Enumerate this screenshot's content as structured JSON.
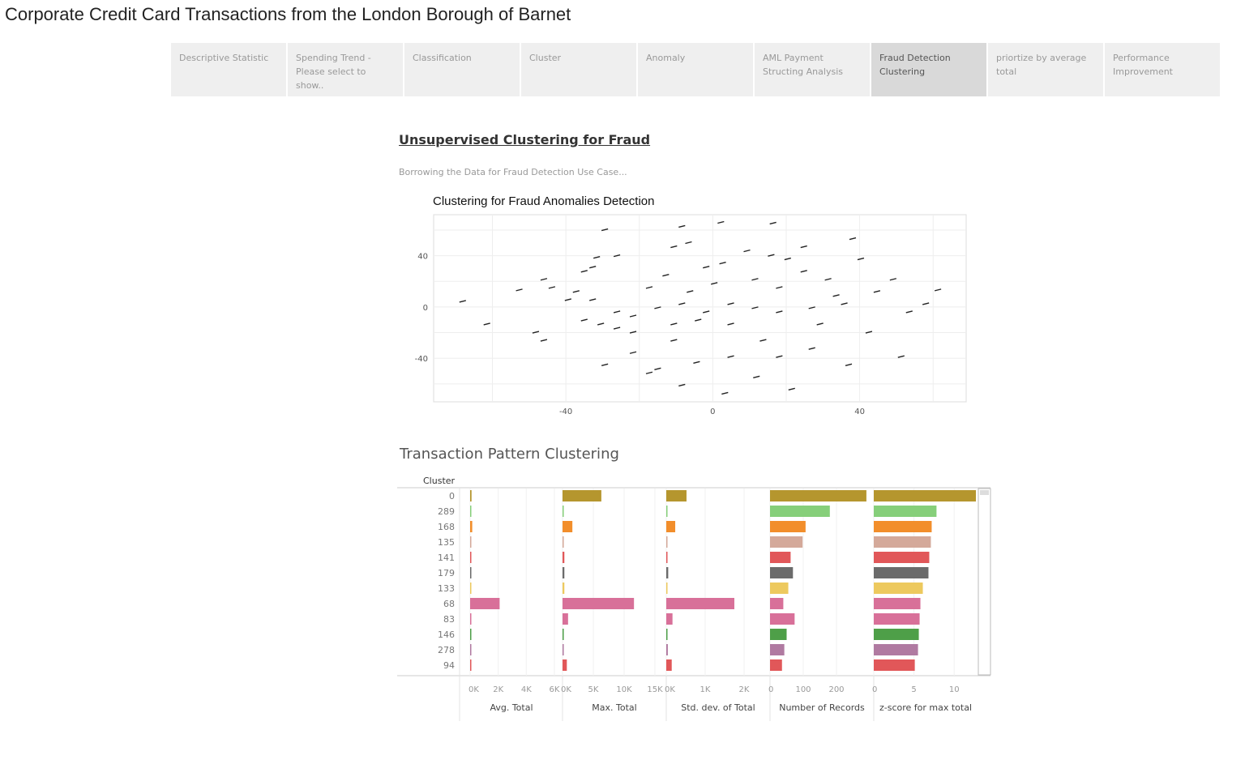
{
  "title": "Corporate Credit Card Transactions from the London Borough of Barnet",
  "tabs": [
    {
      "label": "Descriptive Statistic"
    },
    {
      "label": "Spending Trend - Please select to show.."
    },
    {
      "label": "Classification"
    },
    {
      "label": "Cluster"
    },
    {
      "label": "Anomaly"
    },
    {
      "label": "AML Payment Structing Analysis"
    },
    {
      "label": "Fraud Detection Clustering",
      "selected": true
    },
    {
      "label": "priortize by average total"
    },
    {
      "label": "Performance Improvement"
    }
  ],
  "heading": "Unsupervised Clustering for Fraud",
  "subtitle": "Borrowing the Data for Fraud Detection Use Case...",
  "chart_data": [
    {
      "type": "scatter",
      "title": "Clustering for Fraud Anomalies Detection",
      "xlim": [
        -76,
        69
      ],
      "ylim": [
        -74,
        72
      ],
      "xticks": [
        "-40",
        "0",
        "40"
      ],
      "xtick_values": [
        -40,
        0,
        40
      ],
      "yticks": [
        "40",
        "0",
        "-40"
      ],
      "ytick_values": [
        40,
        0,
        -40
      ],
      "grid": true,
      "point_color": "#222222",
      "points": [
        [
          -8.4,
          62.9
        ],
        [
          2.2,
          66
        ],
        [
          16.4,
          65.4
        ],
        [
          -29.4,
          60.3
        ],
        [
          -6.6,
          50.2
        ],
        [
          -10.6,
          47
        ],
        [
          -26.1,
          40
        ],
        [
          -31.6,
          38.7
        ],
        [
          -35,
          27.9
        ],
        [
          -46,
          21.6
        ],
        [
          -52.7,
          13.3
        ],
        [
          -43.8,
          15.2
        ],
        [
          -39.4,
          5.7
        ],
        [
          -30.5,
          -13.3
        ],
        [
          -21.7,
          -19.7
        ],
        [
          -26.1,
          -16.5
        ],
        [
          -46,
          -26
        ],
        [
          -48.2,
          -19.7
        ],
        [
          -61.5,
          -13.3
        ],
        [
          -68.1,
          4.4
        ],
        [
          -29.4,
          -45.1
        ],
        [
          -21.7,
          -35.6
        ],
        [
          -15,
          -48.3
        ],
        [
          -10.6,
          -26
        ],
        [
          -4.4,
          -43.2
        ],
        [
          4.9,
          -38.7
        ],
        [
          13.7,
          -26
        ],
        [
          18.1,
          -38.7
        ],
        [
          27,
          -32.4
        ],
        [
          37,
          -45.1
        ],
        [
          42.5,
          -19.7
        ],
        [
          51.3,
          -38.7
        ],
        [
          53.5,
          -3.8
        ],
        [
          58,
          2.5
        ],
        [
          61.3,
          13.3
        ],
        [
          49.1,
          21.6
        ],
        [
          40.3,
          37.5
        ],
        [
          38.1,
          53.3
        ],
        [
          24.8,
          47
        ],
        [
          24.8,
          27.9
        ],
        [
          18.1,
          15.2
        ],
        [
          11.5,
          21.6
        ],
        [
          0.4,
          18.4
        ],
        [
          -6.2,
          12.1
        ],
        [
          -12.8,
          24.8
        ],
        [
          -17.3,
          15.2
        ],
        [
          -15,
          -0.6
        ],
        [
          -8.4,
          2.5
        ],
        [
          -1.8,
          -3.8
        ],
        [
          4.9,
          2.5
        ],
        [
          11.5,
          -0.6
        ],
        [
          18.1,
          -3.8
        ],
        [
          27,
          -0.6
        ],
        [
          33.6,
          8.9
        ],
        [
          35.8,
          2.5
        ],
        [
          29.2,
          -13.3
        ],
        [
          4.9,
          -13.3
        ],
        [
          -4,
          -10.2
        ],
        [
          -10.6,
          -13.3
        ],
        [
          -21.7,
          -7
        ],
        [
          -26.1,
          -3.8
        ],
        [
          -32.7,
          5.7
        ],
        [
          -37.2,
          12.1
        ],
        [
          9.3,
          43.8
        ],
        [
          15.9,
          40.3
        ],
        [
          20.4,
          37.5
        ],
        [
          44.7,
          12.1
        ],
        [
          21.5,
          -64.1
        ],
        [
          11.9,
          -54.6
        ],
        [
          3.3,
          -67.3
        ],
        [
          -8.4,
          -61
        ],
        [
          -17.3,
          -51.4
        ],
        [
          -32.7,
          31.1
        ],
        [
          -35,
          -10.2
        ],
        [
          31.4,
          21.6
        ],
        [
          -1.8,
          31.1
        ],
        [
          2.7,
          34.3
        ]
      ]
    },
    {
      "type": "bar",
      "title": "Transaction Pattern Clustering",
      "row_header": "Cluster",
      "categories": [
        "0",
        "289",
        "168",
        "135",
        "141",
        "179",
        "133",
        "68",
        "83",
        "146",
        "278",
        "94"
      ],
      "colors": [
        "#b5962e",
        "#86cf7a",
        "#f28e2b",
        "#d4a99a",
        "#e15759",
        "#6b6b6b",
        "#edc95e",
        "#d87099",
        "#d87099",
        "#4e9f48",
        "#b07aa1",
        "#e15759"
      ],
      "panels": [
        {
          "name": "Avg. Total",
          "xlim": [
            0,
            6000
          ],
          "ticks": [
            "0K",
            "2K",
            "4K",
            "6K"
          ],
          "tick_values": [
            0,
            2000,
            4000,
            6000
          ],
          "values": [
            100,
            20,
            150,
            20,
            30,
            20,
            40,
            2100,
            60,
            20,
            20,
            20
          ]
        },
        {
          "name": "Max. Total",
          "xlim": [
            0,
            15000
          ],
          "ticks": [
            "0K",
            "5K",
            "10K",
            "15K"
          ],
          "tick_values": [
            0,
            5000,
            10000,
            15000
          ],
          "values": [
            6300,
            200,
            1600,
            200,
            300,
            300,
            300,
            11600,
            900,
            200,
            200,
            700
          ]
        },
        {
          "name": "Std. dev. of Total",
          "xlim": [
            0,
            2000
          ],
          "ticks": [
            "0K",
            "1K",
            "2K"
          ],
          "tick_values": [
            0,
            1000,
            2000
          ],
          "values": [
            520,
            20,
            230,
            20,
            30,
            50,
            30,
            1750,
            160,
            30,
            40,
            140
          ]
        },
        {
          "name": "Number of Records",
          "xlim": [
            0,
            300
          ],
          "ticks": [
            "0",
            "100",
            "200"
          ],
          "tick_values": [
            0,
            100,
            200
          ],
          "values": [
            290,
            180,
            107,
            98,
            62,
            69,
            55,
            40,
            74,
            50,
            43,
            36
          ]
        },
        {
          "name": "z-score for max total",
          "xlim": [
            0,
            13
          ],
          "ticks": [
            "0",
            "5",
            "10"
          ],
          "tick_values": [
            0,
            5,
            10
          ],
          "values": [
            12.7,
            7.8,
            7.2,
            7.1,
            6.9,
            6.8,
            6.1,
            5.8,
            5.7,
            5.6,
            5.5,
            5.1
          ]
        }
      ]
    }
  ]
}
